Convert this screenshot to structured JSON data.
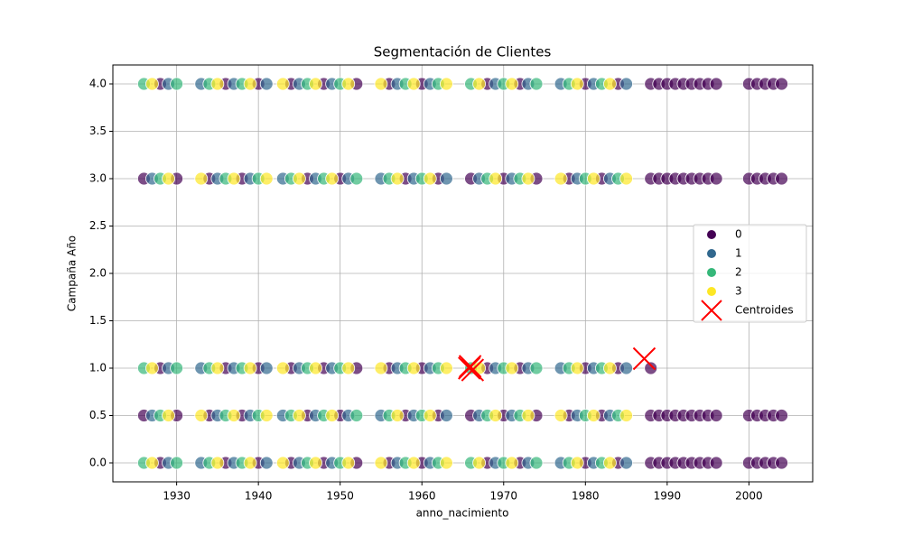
{
  "chart_data": {
    "type": "scatter",
    "title": "Segmentación de Clientes",
    "xlabel": "anno_nacimiento",
    "ylabel": "Campaña Año",
    "xlim": [
      1922.2,
      2007.8
    ],
    "ylim": [
      -0.2,
      4.2
    ],
    "xticks": [
      1930,
      1940,
      1950,
      1960,
      1970,
      1980,
      1990,
      2000
    ],
    "yticks": [
      {
        "value": 0,
        "label": "0.0"
      },
      {
        "value": 0.5,
        "label": "0.5"
      },
      {
        "value": 1,
        "label": "1.0"
      },
      {
        "value": 1.5,
        "label": "1.5"
      },
      {
        "value": 2,
        "label": "2.0"
      },
      {
        "value": 2.5,
        "label": "2.5"
      },
      {
        "value": 3,
        "label": "3.0"
      },
      {
        "value": 3.5,
        "label": "3.5"
      },
      {
        "value": 4,
        "label": "4.0"
      }
    ],
    "grid": true,
    "legend": "center right",
    "series": [
      {
        "name": "0",
        "color": "#440154",
        "marker": "o",
        "x": [
          1928,
          1936,
          1940,
          1944,
          1948,
          1952,
          1956,
          1960,
          1968,
          1972,
          1980,
          1984,
          1928,
          1936,
          1940,
          1944,
          1948,
          1952,
          1956,
          1960,
          1968,
          1972,
          1980,
          1984,
          1928,
          1936,
          1940,
          1944,
          1948,
          1952,
          1956,
          1960,
          1968,
          1972,
          1980,
          1984,
          1926,
          1930,
          1934,
          1938,
          1946,
          1950,
          1958,
          1962,
          1966,
          1970,
          1974,
          1978,
          1982,
          1926,
          1930,
          1934,
          1938,
          1946,
          1950,
          1958,
          1962,
          1966,
          1970,
          1974,
          1978,
          1982,
          1988,
          1989,
          1990,
          1991,
          1992,
          1993,
          1994,
          1995,
          1996,
          2000,
          2001,
          2002,
          2003,
          2004,
          1988,
          1989,
          1990,
          1991,
          1992,
          1993,
          1994,
          1995,
          1996,
          2000,
          2001,
          2002,
          2003,
          2004,
          1988,
          1989,
          1990,
          1991,
          1992,
          1993,
          1994,
          1995,
          1996,
          2000,
          2001,
          2002,
          2003,
          2004,
          1988,
          1989,
          1990,
          1991,
          1992,
          1993,
          1994,
          1995,
          1996,
          2000,
          2001,
          2002,
          2003,
          2004,
          1988
        ],
        "y": [
          0,
          0,
          0,
          0,
          0,
          0,
          0,
          0,
          0,
          0,
          0,
          0,
          1,
          1,
          1,
          1,
          1,
          1,
          1,
          1,
          1,
          1,
          1,
          1,
          4,
          4,
          4,
          4,
          4,
          4,
          4,
          4,
          4,
          4,
          4,
          4,
          0.5,
          0.5,
          0.5,
          0.5,
          0.5,
          0.5,
          0.5,
          0.5,
          0.5,
          0.5,
          0.5,
          0.5,
          0.5,
          3,
          3,
          3,
          3,
          3,
          3,
          3,
          3,
          3,
          3,
          3,
          3,
          3,
          0,
          0,
          0,
          0,
          0,
          0,
          0,
          0,
          0,
          0,
          0,
          0,
          0,
          0,
          0.5,
          0.5,
          0.5,
          0.5,
          0.5,
          0.5,
          0.5,
          0.5,
          0.5,
          0.5,
          0.5,
          0.5,
          0.5,
          0.5,
          3,
          3,
          3,
          3,
          3,
          3,
          3,
          3,
          3,
          3,
          3,
          3,
          3,
          3,
          4,
          4,
          4,
          4,
          4,
          4,
          4,
          4,
          4,
          4,
          4,
          4,
          4,
          4,
          1
        ]
      },
      {
        "name": "1",
        "color": "#31688e",
        "marker": "o",
        "x": [
          1929,
          1933,
          1937,
          1941,
          1945,
          1949,
          1957,
          1961,
          1969,
          1973,
          1977,
          1981,
          1985,
          1929,
          1933,
          1937,
          1941,
          1945,
          1949,
          1957,
          1961,
          1969,
          1973,
          1977,
          1981,
          1985,
          1929,
          1933,
          1937,
          1941,
          1945,
          1949,
          1957,
          1961,
          1969,
          1973,
          1977,
          1981,
          1985,
          1927,
          1935,
          1939,
          1943,
          1947,
          1951,
          1955,
          1959,
          1963,
          1967,
          1971,
          1979,
          1983,
          1927,
          1935,
          1939,
          1943,
          1947,
          1951,
          1955,
          1959,
          1963,
          1967,
          1971,
          1979,
          1983
        ],
        "y": [
          0,
          0,
          0,
          0,
          0,
          0,
          0,
          0,
          0,
          0,
          0,
          0,
          0,
          1,
          1,
          1,
          1,
          1,
          1,
          1,
          1,
          1,
          1,
          1,
          1,
          1,
          4,
          4,
          4,
          4,
          4,
          4,
          4,
          4,
          4,
          4,
          4,
          4,
          4,
          0.5,
          0.5,
          0.5,
          0.5,
          0.5,
          0.5,
          0.5,
          0.5,
          0.5,
          0.5,
          0.5,
          0.5,
          0.5,
          3,
          3,
          3,
          3,
          3,
          3,
          3,
          3,
          3,
          3,
          3,
          3,
          3
        ]
      },
      {
        "name": "2",
        "color": "#35b779",
        "marker": "o",
        "x": [
          1926,
          1930,
          1934,
          1938,
          1946,
          1950,
          1958,
          1962,
          1966,
          1970,
          1974,
          1978,
          1982,
          1926,
          1930,
          1934,
          1938,
          1946,
          1950,
          1958,
          1962,
          1966,
          1970,
          1974,
          1978,
          1982,
          1926,
          1930,
          1934,
          1938,
          1946,
          1950,
          1958,
          1962,
          1966,
          1970,
          1974,
          1978,
          1982,
          1928,
          1936,
          1940,
          1944,
          1948,
          1952,
          1956,
          1960,
          1968,
          1972,
          1980,
          1984,
          1928,
          1936,
          1940,
          1944,
          1948,
          1952,
          1956,
          1960,
          1968,
          1972,
          1980,
          1984
        ],
        "y": [
          0,
          0,
          0,
          0,
          0,
          0,
          0,
          0,
          0,
          0,
          0,
          0,
          0,
          1,
          1,
          1,
          1,
          1,
          1,
          1,
          1,
          1,
          1,
          1,
          1,
          1,
          4,
          4,
          4,
          4,
          4,
          4,
          4,
          4,
          4,
          4,
          4,
          4,
          4,
          0.5,
          0.5,
          0.5,
          0.5,
          0.5,
          0.5,
          0.5,
          0.5,
          0.5,
          0.5,
          0.5,
          0.5,
          3,
          3,
          3,
          3,
          3,
          3,
          3,
          3,
          3,
          3,
          3,
          3
        ]
      },
      {
        "name": "3",
        "color": "#fde725",
        "marker": "o",
        "x": [
          1927,
          1935,
          1939,
          1943,
          1947,
          1951,
          1955,
          1959,
          1963,
          1967,
          1971,
          1979,
          1983,
          1927,
          1935,
          1939,
          1943,
          1947,
          1951,
          1955,
          1959,
          1963,
          1967,
          1971,
          1979,
          1983,
          1927,
          1935,
          1939,
          1943,
          1947,
          1951,
          1955,
          1959,
          1963,
          1967,
          1971,
          1979,
          1983,
          1929,
          1933,
          1937,
          1941,
          1945,
          1949,
          1957,
          1961,
          1969,
          1973,
          1977,
          1981,
          1985,
          1929,
          1933,
          1937,
          1941,
          1945,
          1949,
          1957,
          1961,
          1969,
          1973,
          1977,
          1981,
          1985
        ],
        "y": [
          0,
          0,
          0,
          0,
          0,
          0,
          0,
          0,
          0,
          0,
          0,
          0,
          0,
          1,
          1,
          1,
          1,
          1,
          1,
          1,
          1,
          1,
          1,
          1,
          1,
          1,
          4,
          4,
          4,
          4,
          4,
          4,
          4,
          4,
          4,
          4,
          4,
          4,
          4,
          0.5,
          0.5,
          0.5,
          0.5,
          0.5,
          0.5,
          0.5,
          0.5,
          0.5,
          0.5,
          0.5,
          0.5,
          0.5,
          3,
          3,
          3,
          3,
          3,
          3,
          3,
          3,
          3,
          3,
          3,
          3,
          3
        ]
      },
      {
        "name": "Centroides",
        "color": "#ff0000",
        "marker": "x",
        "x": [
          1965.8,
          1966.2,
          1965.9,
          1987.2
        ],
        "y": [
          1.0,
          0.98,
          1.02,
          1.1
        ]
      }
    ]
  }
}
